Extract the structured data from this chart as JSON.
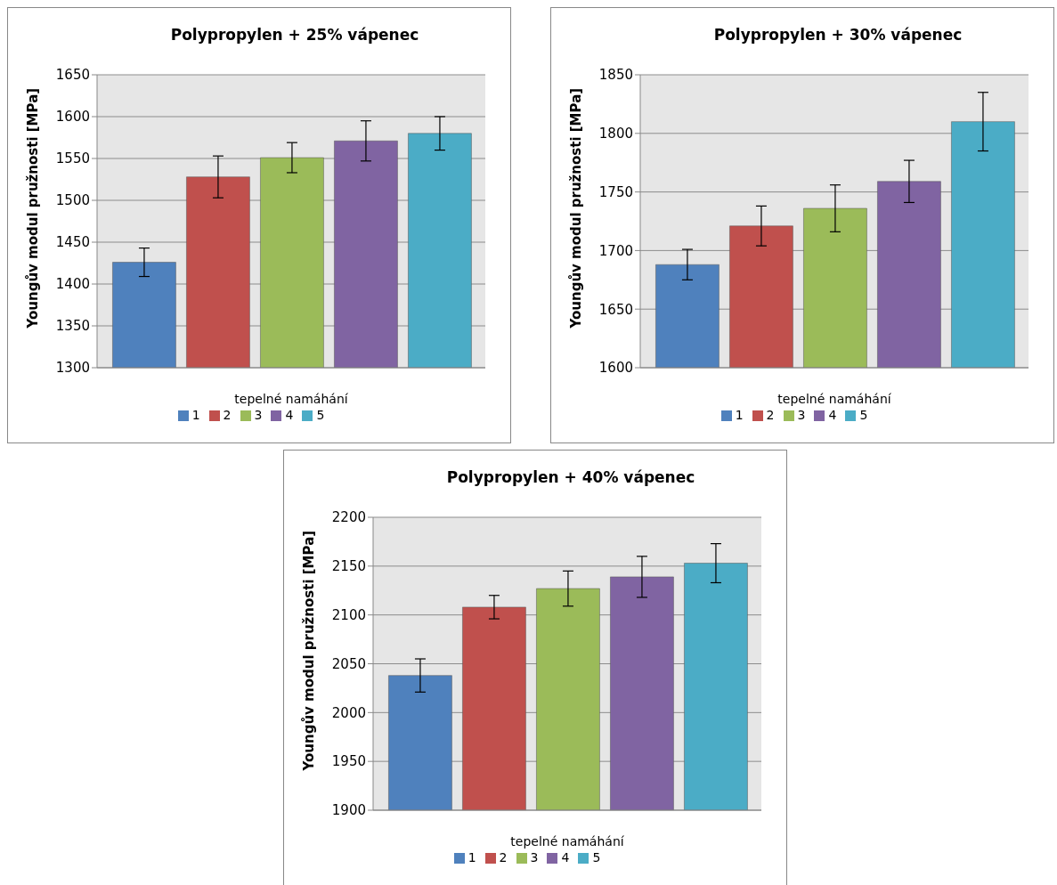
{
  "chart_data": [
    {
      "type": "bar",
      "title": "Polypropylen + 25% vápenec",
      "xlabel": "tepelné namáhání",
      "ylabel": "Youngův modul pružnosti [MPa]",
      "categories": [
        null
      ],
      "series": [
        {
          "name": "1",
          "color": "#4f81bd",
          "values": [
            1426
          ],
          "errors": [
            17
          ]
        },
        {
          "name": "2",
          "color": "#c0504d",
          "values": [
            1528
          ],
          "errors": [
            25
          ]
        },
        {
          "name": "3",
          "color": "#9bbb59",
          "values": [
            1551
          ],
          "errors": [
            18
          ]
        },
        {
          "name": "4",
          "color": "#8064a2",
          "values": [
            1571
          ],
          "errors": [
            24
          ]
        },
        {
          "name": "5",
          "color": "#4bacc6",
          "values": [
            1580
          ],
          "errors": [
            20
          ]
        }
      ],
      "ylim": [
        1300,
        1650
      ],
      "yticks": [
        1300,
        1350,
        1400,
        1450,
        1500,
        1550,
        1600,
        1650
      ],
      "grid": "y",
      "legend": "bottom"
    },
    {
      "type": "bar",
      "title": "Polypropylen + 30% vápenec",
      "xlabel": "tepelné namáhání",
      "ylabel": "Youngův modul pružnosti [MPa]",
      "categories": [
        null
      ],
      "series": [
        {
          "name": "1",
          "color": "#4f81bd",
          "values": [
            1688
          ],
          "errors": [
            13
          ]
        },
        {
          "name": "2",
          "color": "#c0504d",
          "values": [
            1721
          ],
          "errors": [
            17
          ]
        },
        {
          "name": "3",
          "color": "#9bbb59",
          "values": [
            1736
          ],
          "errors": [
            20
          ]
        },
        {
          "name": "4",
          "color": "#8064a2",
          "values": [
            1759
          ],
          "errors": [
            18
          ]
        },
        {
          "name": "5",
          "color": "#4bacc6",
          "values": [
            1810
          ],
          "errors": [
            25
          ]
        }
      ],
      "ylim": [
        1600,
        1850
      ],
      "yticks": [
        1600,
        1650,
        1700,
        1750,
        1800,
        1850
      ],
      "grid": "y",
      "legend": "bottom"
    },
    {
      "type": "bar",
      "title": "Polypropylen + 40% vápenec",
      "xlabel": "tepelné namáhání",
      "ylabel": "Youngův modul pružnosti [MPa]",
      "categories": [
        null
      ],
      "series": [
        {
          "name": "1",
          "color": "#4f81bd",
          "values": [
            2038
          ],
          "errors": [
            17
          ]
        },
        {
          "name": "2",
          "color": "#c0504d",
          "values": [
            2108
          ],
          "errors": [
            12
          ]
        },
        {
          "name": "3",
          "color": "#9bbb59",
          "values": [
            2127
          ],
          "errors": [
            18
          ]
        },
        {
          "name": "4",
          "color": "#8064a2",
          "values": [
            2139
          ],
          "errors": [
            21
          ]
        },
        {
          "name": "5",
          "color": "#4bacc6",
          "values": [
            2153
          ],
          "errors": [
            20
          ]
        }
      ],
      "ylim": [
        1900,
        2200
      ],
      "yticks": [
        1900,
        1950,
        2000,
        2050,
        2100,
        2150,
        2200
      ],
      "grid": "y",
      "legend": "bottom"
    }
  ]
}
